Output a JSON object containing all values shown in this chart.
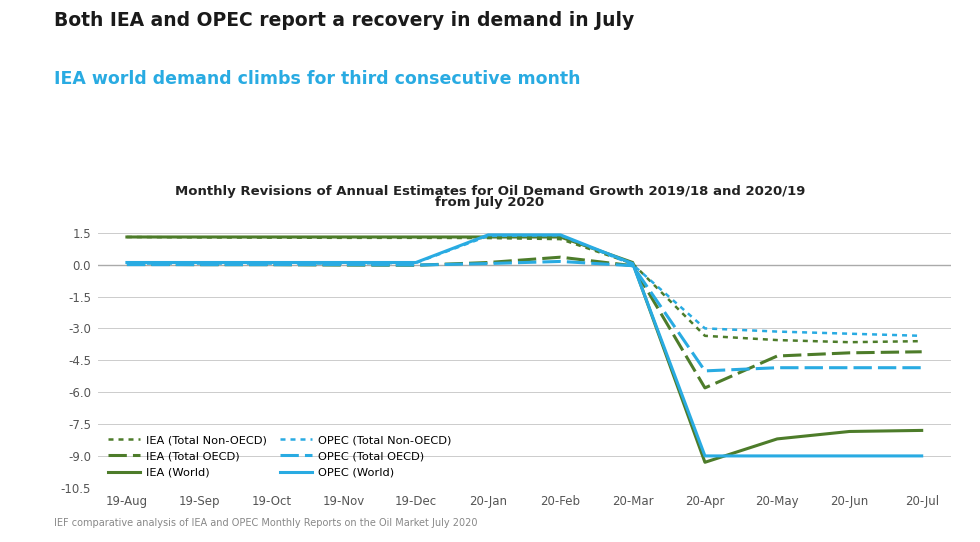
{
  "title_main": "Both IEA and OPEC report a recovery in demand in July",
  "title_sub": "IEA world demand climbs for third consecutive month",
  "chart_title_line1": "Monthly Revisions of Annual Estimates for Oil Demand Growth 2019/18 and 2020/19",
  "chart_title_line2": "from July 2020",
  "footnote": "IEF comparative analysis of IEA and OPEC Monthly Reports on the Oil Market July 2020",
  "x_labels": [
    "19-Aug",
    "19-Sep",
    "19-Oct",
    "19-Nov",
    "19-Dec",
    "20-Jan",
    "20-Feb",
    "20-Mar",
    "20-Apr",
    "20-May",
    "20-Jun",
    "20-Jul"
  ],
  "ylim": [
    -10.5,
    2.25
  ],
  "yticks": [
    -10.5,
    -9.0,
    -7.5,
    -6.0,
    -4.5,
    -3.0,
    -1.5,
    0.0,
    1.5
  ],
  "color_green": "#4d7c2a",
  "color_blue": "#29abe2",
  "background": "#ffffff",
  "IEA_NonOECD": [
    1.3,
    1.28,
    1.27,
    1.26,
    1.26,
    1.25,
    1.2,
    0.05,
    -3.35,
    -3.55,
    -3.65,
    -3.6
  ],
  "IEA_TotalOECD": [
    0.02,
    0.0,
    0.0,
    -0.02,
    -0.03,
    0.1,
    0.35,
    -0.05,
    -5.8,
    -4.3,
    -4.15,
    -4.1
  ],
  "IEA_World": [
    1.3,
    1.3,
    1.3,
    1.3,
    1.3,
    1.3,
    1.3,
    0.1,
    -9.3,
    -8.2,
    -7.85,
    -7.8
  ],
  "OPEC_NonOECD": [
    0.05,
    0.05,
    0.05,
    0.05,
    0.08,
    1.35,
    1.38,
    0.0,
    -3.0,
    -3.15,
    -3.25,
    -3.35
  ],
  "OPEC_TotalOECD": [
    0.0,
    0.0,
    0.0,
    0.0,
    -0.02,
    0.05,
    0.15,
    -0.05,
    -5.0,
    -4.85,
    -4.85,
    -4.85
  ],
  "OPEC_World": [
    0.1,
    0.1,
    0.1,
    0.1,
    0.1,
    1.4,
    1.4,
    0.05,
    -9.0,
    -9.0,
    -9.0,
    -9.0
  ]
}
